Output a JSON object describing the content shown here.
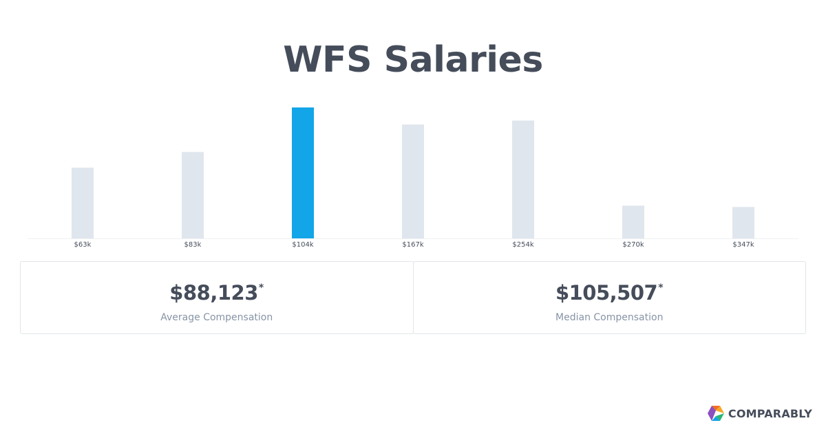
{
  "title": "WFS Salaries",
  "chart_data": {
    "type": "bar",
    "categories": [
      "$63k",
      "$83k",
      "$104k",
      "$167k",
      "$254k",
      "$270k",
      "$347k"
    ],
    "values": [
      54,
      66,
      100,
      87,
      90,
      25,
      24
    ],
    "highlight_index": 2,
    "highlight_color": "#12a5e8",
    "bar_color": "#e0e6ed",
    "ylim": [
      0,
      100
    ],
    "grid": false
  },
  "stats": {
    "average": {
      "value": "$88,123",
      "asterisk": "*",
      "label": "Average Compensation"
    },
    "median": {
      "value": "$105,507",
      "asterisk": "*",
      "label": "Median Compensation"
    }
  },
  "brand": {
    "name": "COMPARABLY",
    "logo_icon": "comparably-logo-icon",
    "logo_colors": [
      "#f26d21",
      "#f5a623",
      "#2bb673",
      "#12a5e8",
      "#8c4fbf"
    ]
  }
}
